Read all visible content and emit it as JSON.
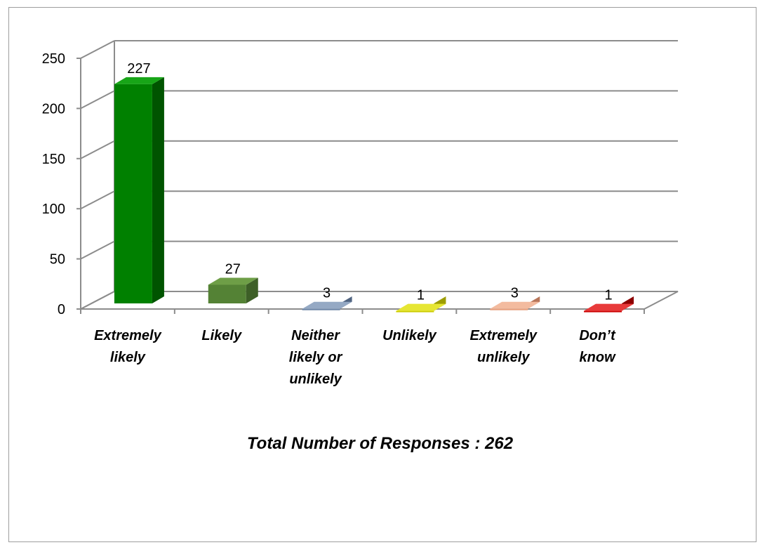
{
  "chart_data": {
    "type": "bar",
    "categories": [
      [
        "Extremely",
        "likely"
      ],
      [
        "Likely"
      ],
      [
        "Neither",
        "likely or",
        "unlikely"
      ],
      [
        "Unlikely"
      ],
      [
        "Extremely",
        "unlikely"
      ],
      [
        "Don’t",
        "know"
      ]
    ],
    "values": [
      227,
      27,
      3,
      1,
      3,
      1
    ],
    "data_labels": [
      "227",
      "27",
      "3",
      "1",
      "3",
      "1"
    ],
    "ylim": [
      0,
      250
    ],
    "yticks": [
      "0",
      "50",
      "100",
      "150",
      "200",
      "250"
    ],
    "ytick_values": [
      0,
      50,
      100,
      150,
      200,
      250
    ],
    "grid": true,
    "three_d": true,
    "colors": [
      "#008000",
      "#548235",
      "#6f87a8",
      "#cccc00",
      "#e8a07e",
      "#cc0000"
    ],
    "side_colors": [
      "#005400",
      "#3d5f27",
      "#4f6380",
      "#9d9d00",
      "#b77559",
      "#8c0000"
    ],
    "top_colors": [
      "#17a517",
      "#6e9e47",
      "#95a9c4",
      "#e6e633",
      "#f3bb9f",
      "#e83a3a"
    ]
  },
  "caption": "Total Number of Responses : 262"
}
